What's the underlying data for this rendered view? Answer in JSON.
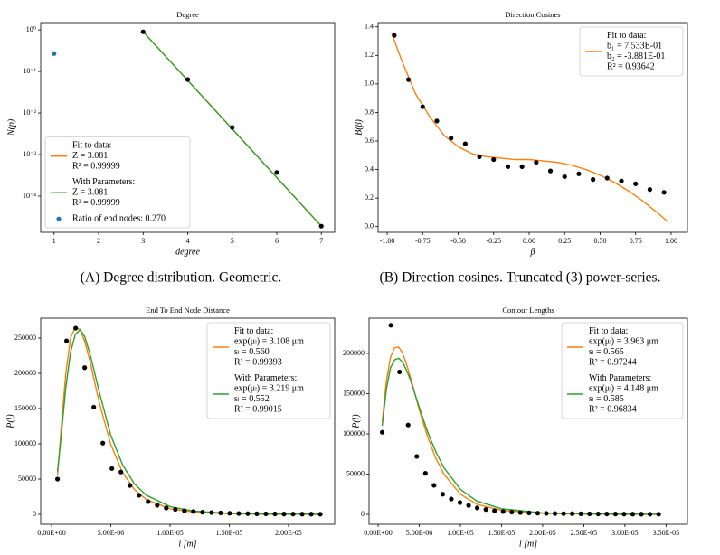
{
  "chart_data": [
    {
      "type": "line",
      "title": "Degree",
      "xlabel": "degree",
      "ylabel": "N(p)",
      "log_y": true,
      "caption": "(A) Degree distribution. Geometric.",
      "xlim": [
        0.7,
        7.3
      ],
      "xticks": [
        1,
        2,
        3,
        4,
        5,
        6,
        7
      ],
      "ylim": [
        1.35e-05,
        1.5
      ],
      "yticks": [
        {
          "value": 1,
          "label": "10⁰"
        },
        {
          "value": 0.1,
          "label": "10⁻¹"
        },
        {
          "value": 0.01,
          "label": "10⁻²"
        },
        {
          "value": 0.001,
          "label": "10⁻³"
        },
        {
          "value": 0.0001,
          "label": "10⁻⁴"
        }
      ],
      "legend": "lower left",
      "series": [
        {
          "name": "Fit to data:",
          "legend_lines": [
            "Z = 3.081",
            "R² = 0.99999"
          ],
          "color": "#ff7f0e",
          "style": "line",
          "x": [
            3,
            7
          ],
          "values": [
            0.9,
            1.9e-05
          ]
        },
        {
          "name": "With Parameters:",
          "legend_lines": [
            "Z = 3.081",
            "R² = 0.99999"
          ],
          "color": "#2ca02c",
          "style": "line",
          "x": [
            3,
            7
          ],
          "values": [
            0.9,
            1.9e-05
          ]
        },
        {
          "name": "Ratio of end nodes: 0.270",
          "color": "#1f77b4",
          "style": "markers",
          "x": [
            1
          ],
          "values": [
            0.27
          ]
        },
        {
          "color": "#000000",
          "style": "markers",
          "x": [
            3,
            4,
            5,
            6,
            7
          ],
          "values": [
            0.9,
            0.064,
            0.0045,
            0.00037,
            1.9e-05
          ]
        }
      ]
    },
    {
      "type": "line",
      "title": "Direction Cosines",
      "xlabel": "β",
      "ylabel": "B(β)",
      "caption": "(B) Direction cosines. Truncated (3) power-series.",
      "xlim": [
        -1.064,
        1.115
      ],
      "xticks": [
        {
          "value": -1,
          "label": "-1.00"
        },
        {
          "value": -0.75,
          "label": "-0.75"
        },
        {
          "value": -0.5,
          "label": "-0.50"
        },
        {
          "value": -0.25,
          "label": "-0.25"
        },
        {
          "value": 0,
          "label": "0.00"
        },
        {
          "value": 0.25,
          "label": "0.25"
        },
        {
          "value": 0.5,
          "label": "0.50"
        },
        {
          "value": 0.75,
          "label": "0.75"
        },
        {
          "value": 1,
          "label": "1.00"
        }
      ],
      "ylim": [
        -0.04,
        1.43
      ],
      "yticks": [
        {
          "value": 0,
          "label": "0.0"
        },
        0.2,
        0.4,
        0.6,
        0.8,
        {
          "value": 1,
          "label": "1.0"
        },
        1.2,
        1.4
      ],
      "legend": "upper right",
      "series": [
        {
          "name": "Fit to data:",
          "legend_lines": [
            "b₁ = 7.533E-01",
            "b₂ = -3.881E-01",
            "R² = 0.93642"
          ],
          "color": "#ff7f0e",
          "style": "line",
          "x": [
            -0.97,
            -0.9,
            -0.8,
            -0.7,
            -0.6,
            -0.5,
            -0.4,
            -0.3,
            -0.2,
            -0.1,
            0,
            0.1,
            0.2,
            0.3,
            0.4,
            0.5,
            0.6,
            0.7,
            0.8,
            0.9,
            0.97
          ],
          "values": [
            1.36,
            1.17,
            0.93,
            0.77,
            0.64,
            0.56,
            0.51,
            0.49,
            0.48,
            0.47,
            0.47,
            0.46,
            0.45,
            0.43,
            0.4,
            0.36,
            0.31,
            0.25,
            0.18,
            0.1,
            0.04
          ]
        },
        {
          "color": "#000000",
          "style": "markers",
          "x": [
            -0.95,
            -0.85,
            -0.75,
            -0.65,
            -0.55,
            -0.45,
            -0.35,
            -0.25,
            -0.15,
            -0.05,
            0.05,
            0.15,
            0.25,
            0.35,
            0.45,
            0.55,
            0.65,
            0.75,
            0.85,
            0.95
          ],
          "values": [
            1.34,
            1.03,
            0.84,
            0.74,
            0.62,
            0.58,
            0.49,
            0.47,
            0.42,
            0.42,
            0.45,
            0.39,
            0.35,
            0.37,
            0.33,
            0.34,
            0.32,
            0.3,
            0.26,
            0.24
          ]
        }
      ]
    },
    {
      "type": "line",
      "title": "End To End Node Distance",
      "xlabel": "l [m]",
      "ylabel": "P(l)",
      "xlim": [
        -9.2e-07,
        2.39e-05
      ],
      "xticks": [
        {
          "value": 0,
          "label": "0.00E+00"
        },
        {
          "value": 5e-06,
          "label": "5.00E-06"
        },
        {
          "value": 1e-05,
          "label": "1.00E-05"
        },
        {
          "value": 1.5e-05,
          "label": "1.50E-05"
        },
        {
          "value": 2e-05,
          "label": "2.00E-05"
        }
      ],
      "ylim": [
        -14100,
        278200
      ],
      "yticks": [
        0,
        50000,
        100000,
        150000,
        200000,
        250000
      ],
      "legend": "upper right",
      "series": [
        {
          "name": "Fit to data:",
          "legend_lines": [
            "exp(μₗ) = 3.108 μm",
            "sₗ = 0.560",
            "R² = 0.99393"
          ],
          "color": "#ff7f0e",
          "style": "line",
          "x": [
            5e-07,
            8e-07,
            1.2e-06,
            1.6e-06,
            2e-06,
            2.4e-06,
            2.8e-06,
            3.2e-06,
            3.6e-06,
            4e-06,
            5e-06,
            6e-06,
            7e-06,
            8e-06,
            1e-05,
            1.2e-05,
            1.5e-05,
            1.8e-05,
            2.27e-05
          ],
          "values": [
            55000,
            120000,
            200000,
            250000,
            266000,
            262000,
            245000,
            220000,
            190000,
            160000,
            99000,
            59000,
            35000,
            21000,
            8000,
            3200,
            900,
            300,
            100
          ]
        },
        {
          "name": "With Parameters:",
          "legend_lines": [
            "exp(μₗ) = 3.219 μm",
            "sₗ = 0.552",
            "R² = 0.99015"
          ],
          "color": "#2ca02c",
          "style": "line",
          "x": [
            5e-07,
            8e-07,
            1.2e-06,
            1.6e-06,
            2e-06,
            2.4e-06,
            2.8e-06,
            3.2e-06,
            3.6e-06,
            4e-06,
            5e-06,
            6e-06,
            7e-06,
            8e-06,
            1e-05,
            1.2e-05,
            1.5e-05,
            1.8e-05,
            2.27e-05
          ],
          "values": [
            60000,
            110000,
            180000,
            230000,
            255000,
            262000,
            252000,
            230000,
            203000,
            175000,
            112000,
            70000,
            43000,
            27000,
            11000,
            4500,
            1400,
            500,
            100
          ]
        },
        {
          "color": "#000000",
          "style": "markers",
          "x": [
            5e-07,
            1.265e-06,
            2.03e-06,
            2.795e-06,
            3.56e-06,
            4.325e-06,
            5.09e-06,
            5.855e-06,
            6.62e-06,
            7.385e-06,
            8.15e-06,
            8.915e-06,
            9.68e-06,
            1.0445e-05,
            1.121e-05,
            1.1975e-05,
            1.274e-05,
            1.3505e-05,
            1.427e-05,
            1.5035e-05,
            1.58e-05,
            1.6565e-05,
            1.733e-05,
            1.8095e-05,
            1.886e-05,
            1.9625e-05,
            2.039e-05,
            2.1155e-05,
            2.192e-05,
            2.2685e-05
          ],
          "values": [
            50000,
            246000,
            264000,
            208000,
            152000,
            101000,
            65000,
            60000,
            41000,
            27000,
            18000,
            13000,
            9000,
            7000,
            5000,
            4000,
            3000,
            2500,
            2000,
            1500,
            1200,
            1000,
            800,
            700,
            600,
            500,
            400,
            300,
            300,
            200
          ]
        }
      ]
    },
    {
      "type": "line",
      "title": "Contour Lengths",
      "xlabel": "l [m]",
      "ylabel": "P(l)",
      "xlim": [
        -1.1e-06,
        3.76e-05
      ],
      "xticks": [
        {
          "value": 0,
          "label": "0.00E+00"
        },
        {
          "value": 5e-06,
          "label": "5.00E-06"
        },
        {
          "value": 1e-05,
          "label": "1.00E-05"
        },
        {
          "value": 1.5e-05,
          "label": "1.50E-05"
        },
        {
          "value": 2e-05,
          "label": "2.00E-05"
        },
        {
          "value": 2.5e-05,
          "label": "2.50E-05"
        },
        {
          "value": 3e-05,
          "label": "3.00E-05"
        },
        {
          "value": 3.5e-05,
          "label": "3.50E-05"
        }
      ],
      "ylim": [
        -12360,
        243800
      ],
      "yticks": [
        0,
        50000,
        100000,
        150000,
        200000
      ],
      "legend": "upper right",
      "series": [
        {
          "name": "Fit to data:",
          "legend_lines": [
            "exp(μₗ) = 3.963 μm",
            "sₗ = 0.565",
            "R² = 0.97244"
          ],
          "color": "#ff7f0e",
          "style": "line",
          "x": [
            5e-07,
            1e-06,
            1.5e-06,
            2e-06,
            2.5e-06,
            3e-06,
            3.5e-06,
            4e-06,
            5e-06,
            6e-06,
            7e-06,
            8e-06,
            1e-05,
            1.2e-05,
            1.5e-05,
            2e-05,
            2.5e-05,
            3e-05,
            3.41e-05
          ],
          "values": [
            115000,
            165000,
            195000,
            207000,
            208000,
            200000,
            185000,
            168000,
            130000,
            97000,
            70000,
            50000,
            25000,
            12500,
            5000,
            1200,
            400,
            150,
            80
          ]
        },
        {
          "name": "With Parameters:",
          "legend_lines": [
            "exp(μₗ) = 4.148 μm",
            "sₗ = 0.585",
            "R² = 0.96834"
          ],
          "color": "#2ca02c",
          "style": "line",
          "x": [
            5e-07,
            1e-06,
            1.5e-06,
            2e-06,
            2.5e-06,
            3e-06,
            3.5e-06,
            4e-06,
            5e-06,
            6e-06,
            7e-06,
            8e-06,
            1e-05,
            1.2e-05,
            1.5e-05,
            2e-05,
            2.5e-05,
            3e-05,
            3.41e-05
          ],
          "values": [
            110000,
            155000,
            182000,
            192000,
            194000,
            189000,
            178000,
            165000,
            133000,
            103000,
            78000,
            58000,
            31000,
            16500,
            7000,
            1800,
            600,
            200,
            100
          ]
        },
        {
          "color": "#000000",
          "style": "markers",
          "x": [
            5e-07,
            1.55e-06,
            2.6e-06,
            3.65e-06,
            4.7e-06,
            5.75e-06,
            6.8e-06,
            7.85e-06,
            8.9e-06,
            9.95e-06,
            1.1e-05,
            1.205e-05,
            1.31e-05,
            1.415e-05,
            1.52e-05,
            1.625e-05,
            1.73e-05,
            1.835e-05,
            1.94e-05,
            2.045e-05,
            2.15e-05,
            2.255e-05,
            2.36e-05,
            2.465e-05,
            2.57e-05,
            2.675e-05,
            2.78e-05,
            2.885e-05,
            2.99e-05,
            3.095e-05,
            3.2e-05,
            3.305e-05,
            3.41e-05
          ],
          "values": [
            102000,
            235000,
            177000,
            111000,
            72000,
            51000,
            36000,
            25000,
            19000,
            14600,
            11000,
            8000,
            6000,
            4500,
            3500,
            2800,
            2200,
            1800,
            1500,
            1200,
            1000,
            900,
            800,
            700,
            600,
            500,
            450,
            400,
            350,
            300,
            250,
            200,
            200
          ]
        }
      ]
    }
  ]
}
